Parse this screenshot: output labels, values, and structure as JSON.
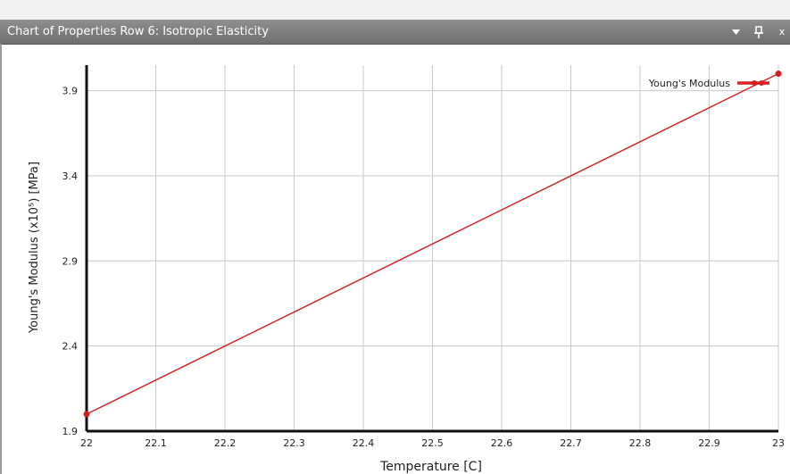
{
  "window": {
    "title": "Chart of Properties Row 6: Isotropic Elasticity",
    "dropdown_icon": "chevron-down-icon",
    "pin_icon": "pin-icon",
    "close_icon": "close-icon",
    "close_glyph": "x"
  },
  "chart_data": {
    "type": "line",
    "title": "",
    "xlabel": "Temperature  [C]",
    "ylabel": "Young's Modulus  (x10⁵)  [MPa]",
    "xlim": [
      22,
      23
    ],
    "ylim": [
      1.9,
      4.05
    ],
    "x_ticks": [
      "22",
      "22.1",
      "22.2",
      "22.3",
      "22.4",
      "22.5",
      "22.6",
      "22.7",
      "22.8",
      "22.9",
      "23"
    ],
    "y_ticks": [
      "1.9",
      "2.4",
      "2.9",
      "3.4",
      "3.9"
    ],
    "grid": true,
    "legend_placement": "top-right",
    "series": [
      {
        "name": "Young's Modulus",
        "color": "#d42020",
        "x": [
          22,
          23
        ],
        "y": [
          2.0,
          4.0
        ]
      }
    ]
  }
}
